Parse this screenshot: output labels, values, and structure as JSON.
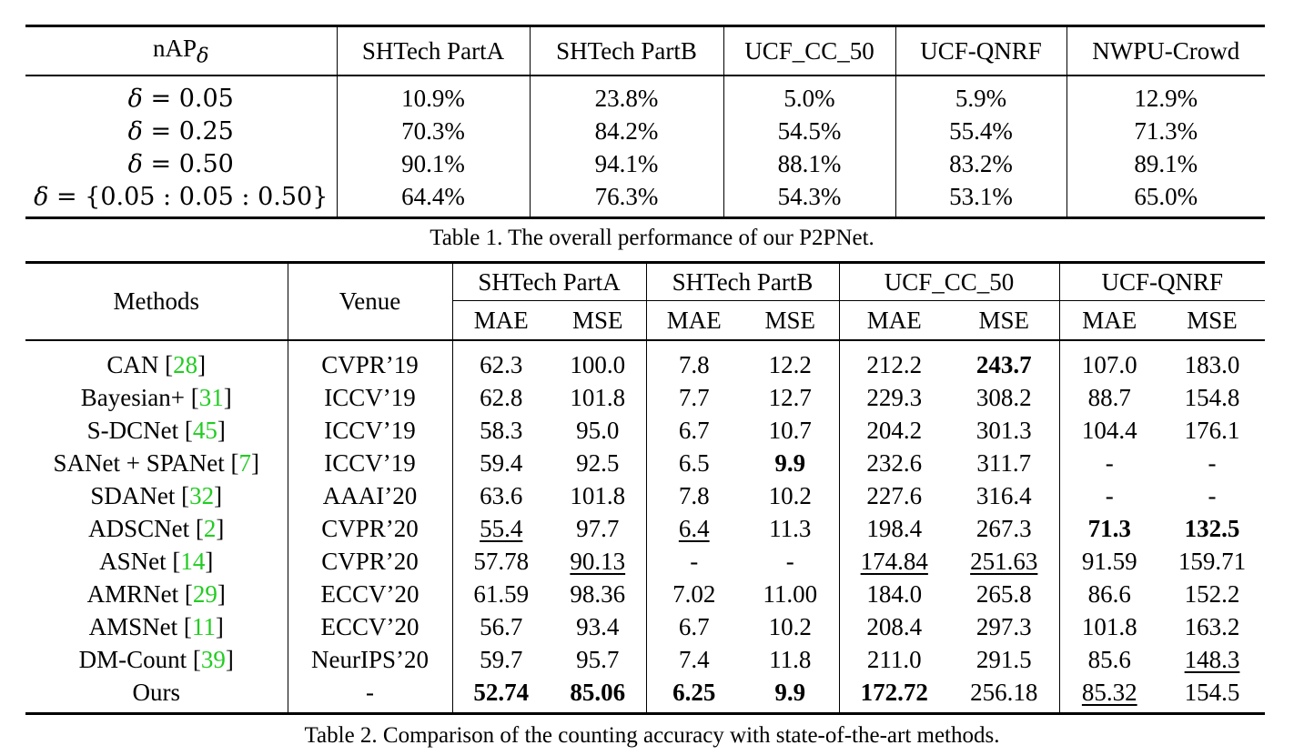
{
  "table1": {
    "header": {
      "label": "nAP",
      "datasets": [
        "SHTech PartA",
        "SHTech PartB",
        "UCF_CC_50",
        "UCF-QNRF",
        "NWPU-Crowd"
      ]
    },
    "rows": [
      {
        "delta": "0.05",
        "values": [
          "10.9%",
          "23.8%",
          "5.0%",
          "5.9%",
          "12.9%"
        ]
      },
      {
        "delta": "0.25",
        "values": [
          "70.3%",
          "84.2%",
          "54.5%",
          "55.4%",
          "71.3%"
        ]
      },
      {
        "delta": "0.50",
        "values": [
          "90.1%",
          "94.1%",
          "88.1%",
          "83.2%",
          "89.1%"
        ]
      },
      {
        "delta": "{0.05 : 0.05 : 0.50}",
        "values": [
          "64.4%",
          "76.3%",
          "54.3%",
          "53.1%",
          "65.0%"
        ]
      }
    ],
    "caption": "Table 1. The overall performance of our P2PNet."
  },
  "table2": {
    "header": {
      "methods": "Methods",
      "venue": "Venue",
      "datasets": [
        "SHTech PartA",
        "SHTech PartB",
        "UCF_CC_50",
        "UCF-QNRF"
      ],
      "metrics": [
        "MAE",
        "MSE",
        "MAE",
        "MSE",
        "MAE",
        "MSE",
        "MAE",
        "MSE"
      ]
    },
    "rows": [
      {
        "method": "CAN",
        "ref": "28",
        "venue": "CVPR’19",
        "values": [
          "62.3",
          "100.0",
          "7.8",
          "12.2",
          "212.2",
          "243.7",
          "107.0",
          "183.0"
        ],
        "bold": [
          5
        ],
        "underline": []
      },
      {
        "method": "Bayesian+",
        "ref": "31",
        "venue": "ICCV’19",
        "values": [
          "62.8",
          "101.8",
          "7.7",
          "12.7",
          "229.3",
          "308.2",
          "88.7",
          "154.8"
        ],
        "bold": [],
        "underline": []
      },
      {
        "method": "S-DCNet",
        "ref": "45",
        "venue": "ICCV’19",
        "values": [
          "58.3",
          "95.0",
          "6.7",
          "10.7",
          "204.2",
          "301.3",
          "104.4",
          "176.1"
        ],
        "bold": [],
        "underline": []
      },
      {
        "method": "SANet + SPANet",
        "ref": "7",
        "venue": "ICCV’19",
        "values": [
          "59.4",
          "92.5",
          "6.5",
          "9.9",
          "232.6",
          "311.7",
          "-",
          "-"
        ],
        "bold": [
          3
        ],
        "underline": []
      },
      {
        "method": "SDANet",
        "ref": "32",
        "venue": "AAAI’20",
        "values": [
          "63.6",
          "101.8",
          "7.8",
          "10.2",
          "227.6",
          "316.4",
          "-",
          "-"
        ],
        "bold": [],
        "underline": []
      },
      {
        "method": "ADSCNet",
        "ref": "2",
        "venue": "CVPR’20",
        "values": [
          "55.4",
          "97.7",
          "6.4",
          "11.3",
          "198.4",
          "267.3",
          "71.3",
          "132.5"
        ],
        "bold": [
          6,
          7
        ],
        "underline": [
          0,
          2
        ]
      },
      {
        "method": "ASNet",
        "ref": "14",
        "venue": "CVPR’20",
        "values": [
          "57.78",
          "90.13",
          "-",
          "-",
          "174.84",
          "251.63",
          "91.59",
          "159.71"
        ],
        "bold": [],
        "underline": [
          1,
          4,
          5
        ]
      },
      {
        "method": "AMRNet",
        "ref": "29",
        "venue": "ECCV’20",
        "values": [
          "61.59",
          "98.36",
          "7.02",
          "11.00",
          "184.0",
          "265.8",
          "86.6",
          "152.2"
        ],
        "bold": [],
        "underline": []
      },
      {
        "method": "AMSNet",
        "ref": "11",
        "venue": "ECCV’20",
        "values": [
          "56.7",
          "93.4",
          "6.7",
          "10.2",
          "208.4",
          "297.3",
          "101.8",
          "163.2"
        ],
        "bold": [],
        "underline": []
      },
      {
        "method": "DM-Count",
        "ref": "39",
        "venue": "NeurIPS’20",
        "values": [
          "59.7",
          "95.7",
          "7.4",
          "11.8",
          "211.0",
          "291.5",
          "85.6",
          "148.3"
        ],
        "bold": [],
        "underline": [
          7
        ]
      },
      {
        "method": "Ours",
        "ref": "",
        "venue": "-",
        "values": [
          "52.74",
          "85.06",
          "6.25",
          "9.9",
          "172.72",
          "256.18",
          "85.32",
          "154.5"
        ],
        "bold": [
          0,
          1,
          2,
          3,
          4
        ],
        "underline": [
          6
        ]
      }
    ],
    "caption": "Table 2. Comparison of the counting accuracy with state-of-the-art methods."
  }
}
